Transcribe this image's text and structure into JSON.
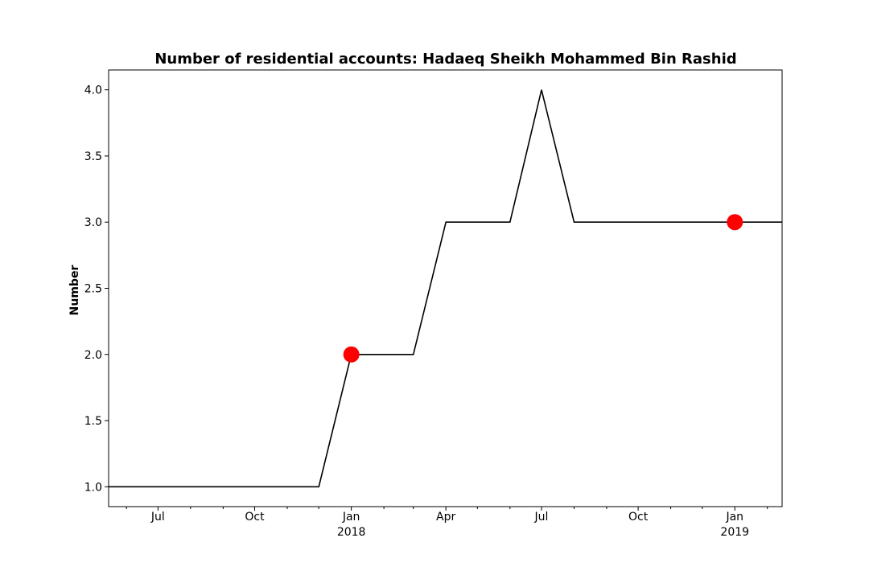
{
  "chart_data": {
    "type": "line",
    "title": "Number of residential accounts: Hadaeq Sheikh Mohammed Bin Rashid",
    "xlabel": "",
    "ylabel": "Number",
    "xlim": [
      "2017-05-15",
      "2019-02-15"
    ],
    "ylim": [
      0.85,
      4.15
    ],
    "grid": false,
    "y_ticks": [
      1.0,
      1.5,
      2.0,
      2.5,
      3.0,
      3.5,
      4.0
    ],
    "y_tick_labels": [
      "1.0",
      "1.5",
      "2.0",
      "2.5",
      "3.0",
      "3.5",
      "4.0"
    ],
    "x_major_ticks": [
      {
        "date": "2017-07-01",
        "label": "Jul",
        "sublabel": ""
      },
      {
        "date": "2017-10-01",
        "label": "Oct",
        "sublabel": ""
      },
      {
        "date": "2018-01-01",
        "label": "Jan",
        "sublabel": "2018"
      },
      {
        "date": "2018-04-01",
        "label": "Apr",
        "sublabel": ""
      },
      {
        "date": "2018-07-01",
        "label": "Jul",
        "sublabel": ""
      },
      {
        "date": "2018-10-01",
        "label": "Oct",
        "sublabel": ""
      },
      {
        "date": "2019-01-01",
        "label": "Jan",
        "sublabel": "2019"
      }
    ],
    "x_minor_ticks": [
      "2017-06-01",
      "2017-08-01",
      "2017-09-01",
      "2017-11-01",
      "2017-12-01",
      "2018-02-01",
      "2018-03-01",
      "2018-05-01",
      "2018-06-01",
      "2018-08-01",
      "2018-09-01",
      "2018-11-01",
      "2018-12-01",
      "2019-02-01"
    ],
    "series": [
      {
        "color": "#000000",
        "points": [
          {
            "x": "2017-05-15",
            "y": 1
          },
          {
            "x": "2017-12-01",
            "y": 1
          },
          {
            "x": "2018-01-01",
            "y": 2
          },
          {
            "x": "2018-03-01",
            "y": 2
          },
          {
            "x": "2018-04-01",
            "y": 3
          },
          {
            "x": "2018-06-01",
            "y": 3
          },
          {
            "x": "2018-07-01",
            "y": 4
          },
          {
            "x": "2018-08-01",
            "y": 3
          },
          {
            "x": "2019-02-15",
            "y": 3
          }
        ]
      }
    ],
    "markers": [
      {
        "x": "2018-01-01",
        "y": 2,
        "color": "#ff0000"
      },
      {
        "x": "2019-01-01",
        "y": 3,
        "color": "#ff0000"
      }
    ]
  }
}
